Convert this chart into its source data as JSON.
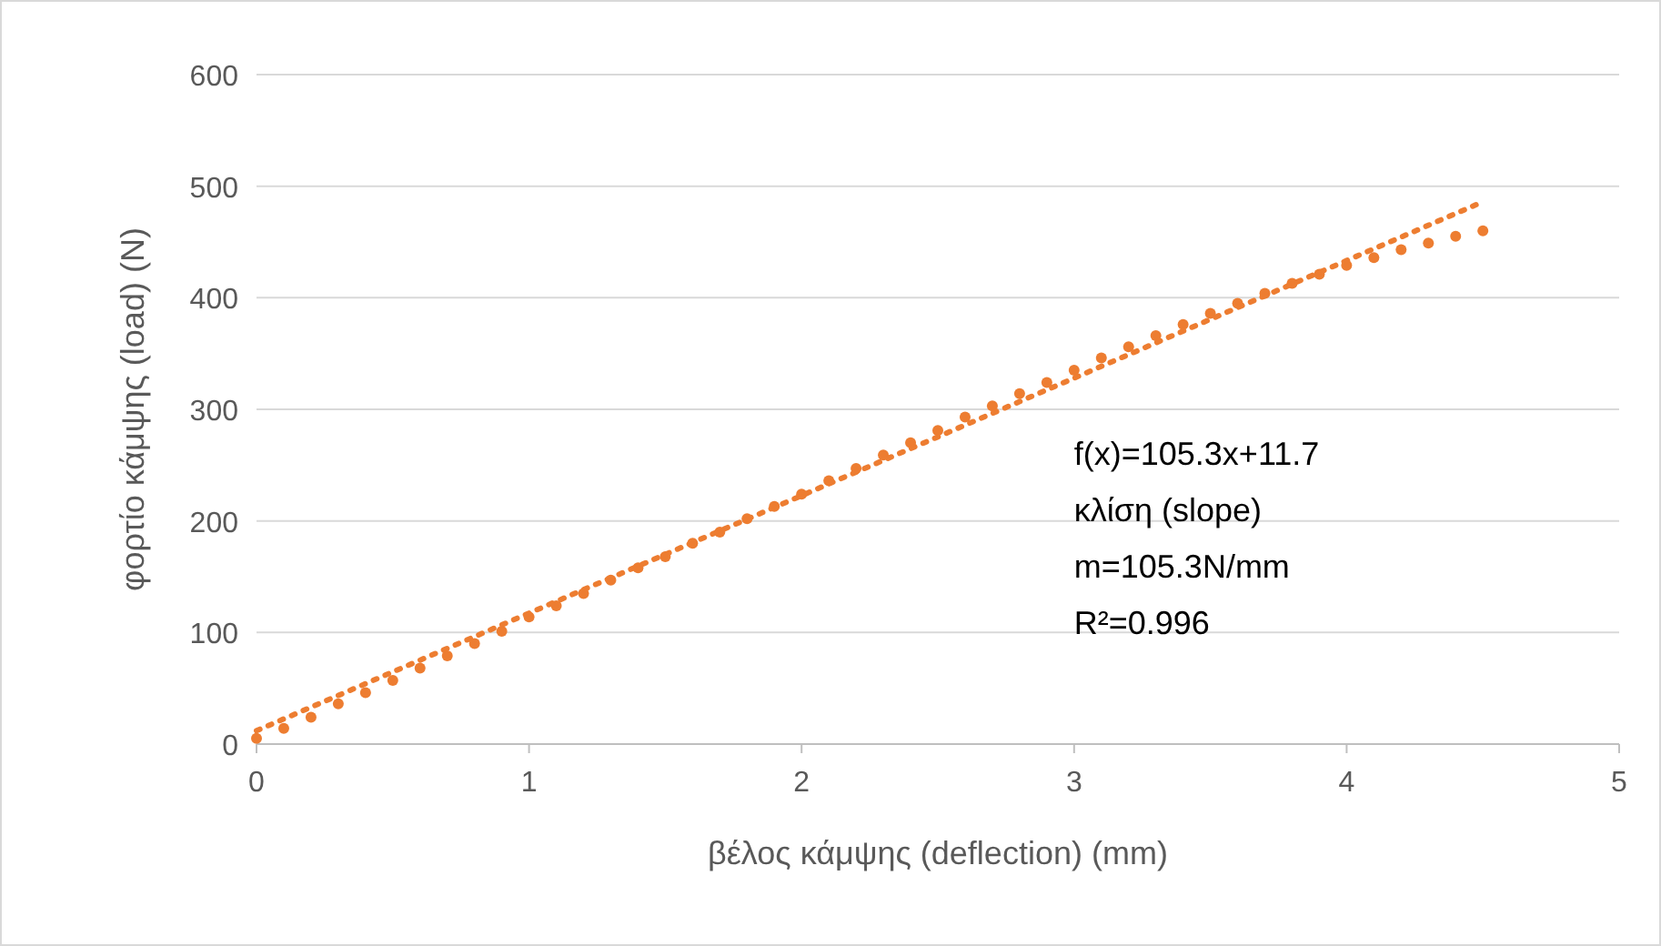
{
  "chart_data": {
    "type": "scatter",
    "xlabel": "βέλος κάμψης (deflection) (mm)",
    "ylabel": "φορτίο κάμψης (load) (N)",
    "xlim": [
      0,
      5
    ],
    "xticks": [
      0,
      1,
      2,
      3,
      4,
      5
    ],
    "ylim": [
      0,
      600
    ],
    "yticks": [
      0,
      100,
      200,
      300,
      400,
      500,
      600
    ],
    "grid": "y",
    "annotations": [
      "f(x)=105.3x+11.7",
      "κλίση (slope)",
      "m=105.3N/mm",
      "R²=0.996"
    ],
    "series": [
      {
        "color": "#ed7d31",
        "marker": "circle",
        "x": [
          0,
          0.1,
          0.2,
          0.3,
          0.4,
          0.5,
          0.6,
          0.7,
          0.8,
          0.9,
          1,
          1.1,
          1.2,
          1.3,
          1.4,
          1.5,
          1.6,
          1.7,
          1.8,
          1.9,
          2,
          2.1,
          2.2,
          2.3,
          2.4,
          2.5,
          2.6,
          2.7,
          2.8,
          2.9,
          3,
          3.1,
          3.2,
          3.3,
          3.4,
          3.5,
          3.6,
          3.7,
          3.8,
          3.9,
          4,
          4.1,
          4.2,
          4.3,
          4.4,
          4.5
        ],
        "values": [
          5,
          14,
          24,
          36,
          46,
          57,
          68,
          79,
          90,
          101,
          114,
          124,
          135,
          147,
          158,
          168,
          180,
          190,
          202,
          213,
          224,
          236,
          247,
          259,
          270,
          281,
          293,
          303,
          314,
          324,
          335,
          346,
          356,
          366,
          376,
          386,
          395,
          404,
          413,
          421,
          429,
          436,
          443,
          449,
          455,
          460
        ]
      },
      {
        "type": "line",
        "color": "#ed7d31",
        "line_style": "dotted",
        "x": [
          0,
          4.5
        ],
        "values": [
          12,
          486
        ]
      }
    ]
  }
}
